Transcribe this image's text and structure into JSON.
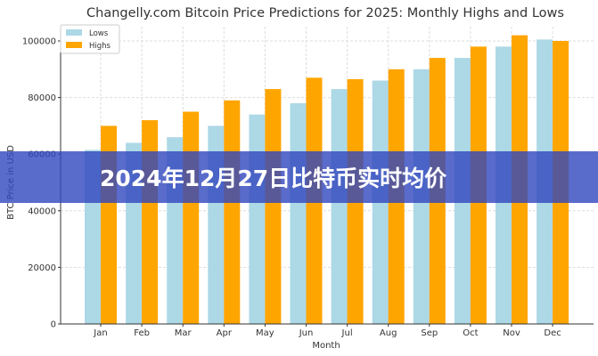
{
  "banner": {
    "text": "2024年12月27日比特币实时均价",
    "color": "#3046be"
  },
  "chart_data": {
    "type": "bar",
    "title": "Changelly.com Bitcoin Price Predictions for 2025: Monthly Highs and Lows",
    "xlabel": "Month",
    "ylabel": "BTC Price in USD",
    "categories": [
      "Jan",
      "Feb",
      "Mar",
      "Apr",
      "May",
      "Jun",
      "Jul",
      "Aug",
      "Sep",
      "Oct",
      "Nov",
      "Dec"
    ],
    "series": [
      {
        "name": "Lows",
        "color": "#add8e6",
        "values": [
          61500,
          64000,
          66000,
          70000,
          74000,
          78000,
          83000,
          86000,
          90000,
          94000,
          98000,
          100500
        ]
      },
      {
        "name": "Highs",
        "color": "#ffa500",
        "values": [
          70000,
          72000,
          75000,
          79000,
          83000,
          87000,
          86500,
          90000,
          94000,
          98000,
          102000,
          100000
        ]
      }
    ],
    "ylim": [
      0,
      105000
    ],
    "yticks": [
      0,
      20000,
      40000,
      60000,
      80000,
      100000
    ],
    "grid": true,
    "legend": "top-left"
  }
}
